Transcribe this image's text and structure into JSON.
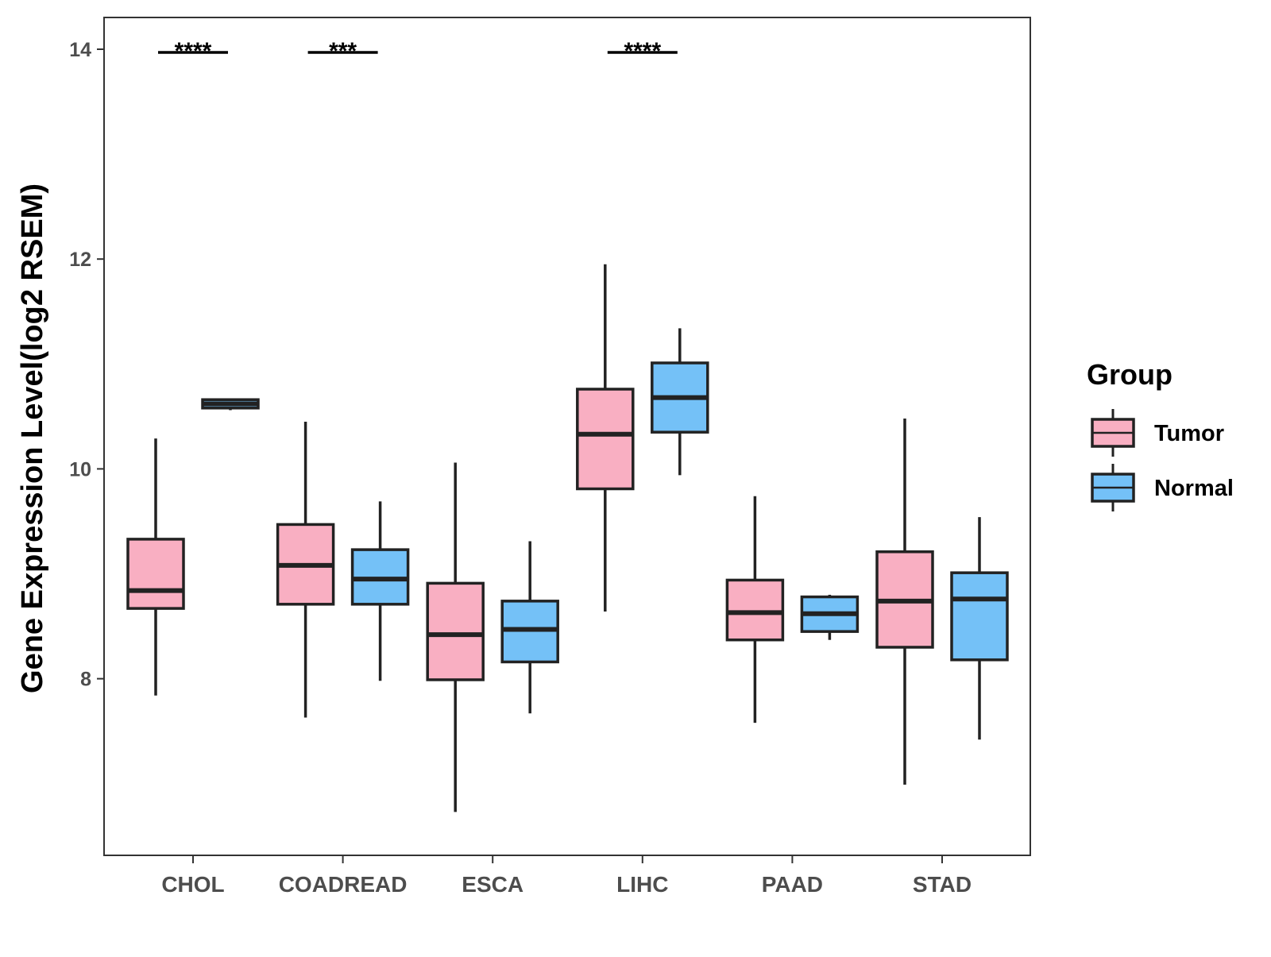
{
  "chart_data": {
    "type": "boxplot",
    "title": "",
    "xlabel": "",
    "ylabel": "Gene Expression Level(log2 RSEM)",
    "ylim": [
      6.45,
      14.4
    ],
    "yticks": [
      8,
      10,
      12,
      14
    ],
    "yticks_labels": [
      "8",
      "10",
      "12",
      "14"
    ],
    "grid": false,
    "categories": [
      "CHOL",
      "COADREAD",
      "ESCA",
      "LIHC",
      "PAAD",
      "STAD"
    ],
    "legend": {
      "title": "Group",
      "position": "right",
      "entries": [
        "Tumor",
        "Normal"
      ]
    },
    "series": [
      {
        "name": "Tumor",
        "color": "#f9afc2",
        "boxes": [
          {
            "whisker_low": 7.84,
            "q1": 8.67,
            "median": 8.84,
            "q3": 9.33,
            "whisker_high": 10.29
          },
          {
            "whisker_low": 7.63,
            "q1": 8.71,
            "median": 9.08,
            "q3": 9.47,
            "whisker_high": 10.45
          },
          {
            "whisker_low": 6.73,
            "q1": 7.99,
            "median": 8.42,
            "q3": 8.91,
            "whisker_high": 10.06
          },
          {
            "whisker_low": 8.64,
            "q1": 9.81,
            "median": 10.33,
            "q3": 10.76,
            "whisker_high": 11.95
          },
          {
            "whisker_low": 7.58,
            "q1": 8.37,
            "median": 8.63,
            "q3": 8.94,
            "whisker_high": 9.74
          },
          {
            "whisker_low": 6.99,
            "q1": 8.3,
            "median": 8.74,
            "q3": 9.21,
            "whisker_high": 10.48
          }
        ]
      },
      {
        "name": "Normal",
        "color": "#74c1f7",
        "boxes": [
          {
            "whisker_low": 10.56,
            "q1": 10.58,
            "median": 10.62,
            "q3": 10.66,
            "whisker_high": 10.66
          },
          {
            "whisker_low": 7.98,
            "q1": 8.71,
            "median": 8.95,
            "q3": 9.23,
            "whisker_high": 9.69
          },
          {
            "whisker_low": 7.67,
            "q1": 8.16,
            "median": 8.47,
            "q3": 8.74,
            "whisker_high": 9.31
          },
          {
            "whisker_low": 9.94,
            "q1": 10.35,
            "median": 10.68,
            "q3": 11.01,
            "whisker_high": 11.34
          },
          {
            "whisker_low": 8.37,
            "q1": 8.45,
            "median": 8.62,
            "q3": 8.78,
            "whisker_high": 8.8
          },
          {
            "whisker_low": 7.42,
            "q1": 8.18,
            "median": 8.76,
            "q3": 9.01,
            "whisker_high": 9.54
          }
        ]
      }
    ],
    "annotations": [
      {
        "category": "CHOL",
        "text": "****",
        "y": 14.0
      },
      {
        "category": "COADREAD",
        "text": "***",
        "y": 14.0
      },
      {
        "category": "LIHC",
        "text": "****",
        "y": 14.0
      }
    ]
  }
}
